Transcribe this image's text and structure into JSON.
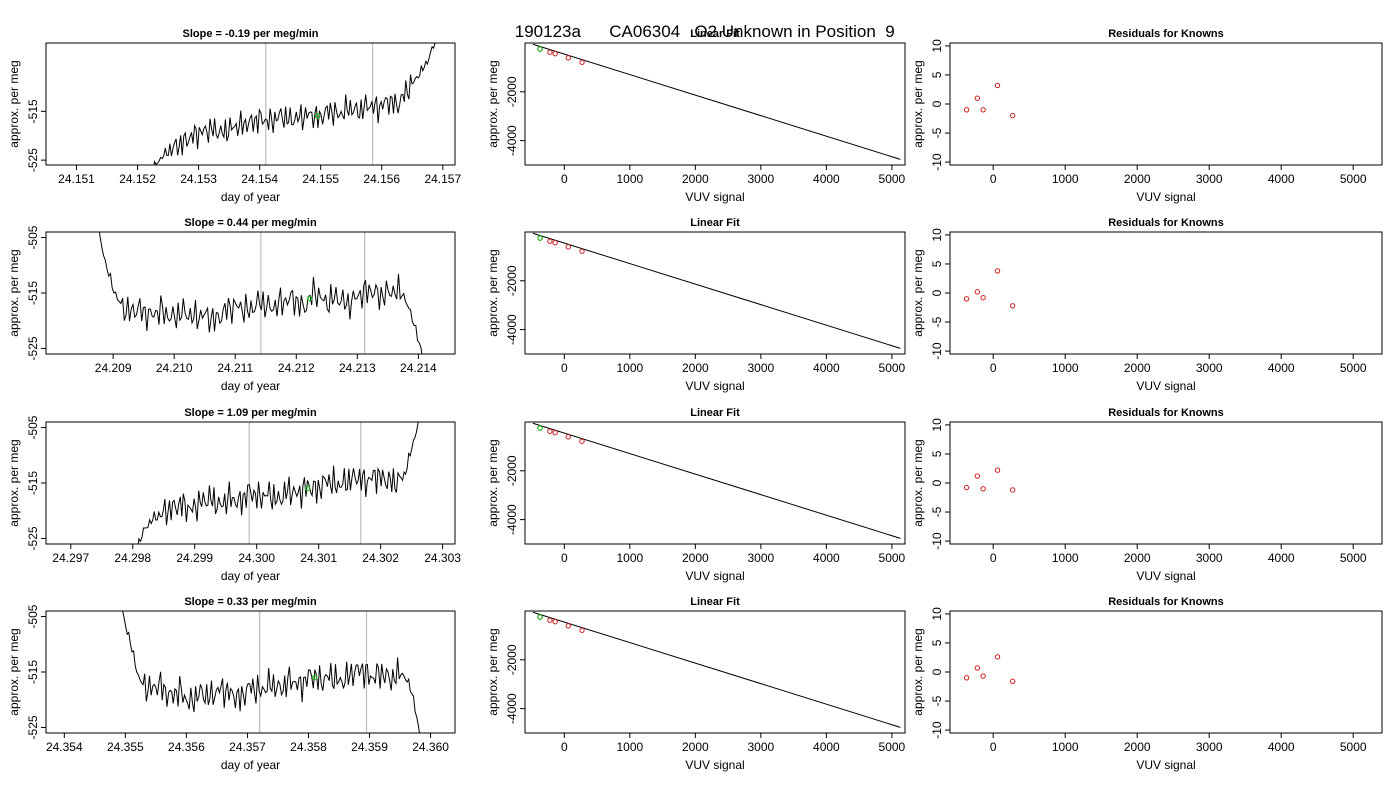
{
  "title_parts": [
    "190123a",
    "CA06304",
    "O2 Unknown in Position",
    "9"
  ],
  "colors": {
    "trace": "#000000",
    "vline": "#bdbdbd",
    "known_point": "#cc2222",
    "unknown_point": "#22bb22"
  },
  "chart_data": [
    {
      "panel": "row1-timeseries",
      "type": "line",
      "title": "Slope =  -0.19  per meg/min",
      "xlabel": "day of year",
      "ylabel": "approx. per meg",
      "xlim": [
        24.1505,
        24.1572
      ],
      "ylim": [
        -526,
        -501
      ],
      "xticks": [
        "24.151",
        "24.152",
        "24.153",
        "24.154",
        "24.155",
        "24.156",
        "24.157"
      ],
      "yticks": [
        "-515",
        "-525"
      ],
      "vlines_x": [
        24.1541,
        24.15585
      ],
      "unknown_point": {
        "x": 24.15495,
        "y": -516
      },
      "trace": {
        "x_start": 24.1521,
        "x_end": 24.1569,
        "y": [
          -529,
          -526.5,
          -524,
          -522.5,
          -521.5,
          -520,
          -519.2,
          -518.6,
          -519.5,
          -518.4,
          -517.8,
          -517.3,
          -516.5,
          -517.2,
          -515.8,
          -516.8,
          -516.2,
          -515.6,
          -516.4,
          -514.7,
          -515.8,
          -514.2,
          -515.1,
          -513.6,
          -514.4,
          -512.8,
          -513.9,
          -510.5,
          -508,
          -505,
          -500
        ]
      }
    },
    {
      "panel": "row1-fit",
      "type": "line",
      "title": "Linear Fit",
      "xlabel": "VUV signal",
      "ylabel": "approx. per meg",
      "xlim": [
        -600,
        5200
      ],
      "ylim": [
        -5000,
        0
      ],
      "xticks": [
        "0",
        "1000",
        "2000",
        "3000",
        "4000",
        "5000"
      ],
      "yticks": [
        "-2000",
        "-4000"
      ],
      "line": {
        "x": [
          -480,
          5130
        ],
        "y": [
          -50,
          -4770
        ]
      },
      "knowns": {
        "x": [
          -370,
          -220,
          -140,
          60,
          270
        ],
        "y": [
          -250,
          -380,
          -440,
          -610,
          -790
        ]
      },
      "unknown": {
        "x": -370,
        "y": -250
      }
    },
    {
      "panel": "row1-residuals",
      "type": "scatter",
      "title": "Residuals for Knowns",
      "xlabel": "VUV signal",
      "ylabel": "approx. per meg",
      "xlim": [
        -600,
        5400
      ],
      "ylim": [
        -10.5,
        10.5
      ],
      "xticks": [
        "0",
        "1000",
        "2000",
        "3000",
        "4000",
        "5000"
      ],
      "yticks": [
        "-10",
        "-5",
        "0",
        "5",
        "10"
      ],
      "x": [
        -370,
        -220,
        -140,
        60,
        270
      ],
      "y": [
        -1,
        1,
        -1,
        3.2,
        -2
      ]
    },
    {
      "panel": "row2-timeseries",
      "type": "line",
      "title": "Slope =  0.44  per meg/min",
      "xlabel": "day of year",
      "ylabel": "approx. per meg",
      "xlim": [
        24.2079,
        24.2146
      ],
      "ylim": [
        -526,
        -504
      ],
      "xticks": [
        "24.209",
        "24.210",
        "24.211",
        "24.212",
        "24.213",
        "24.214"
      ],
      "yticks": [
        "-505",
        "-515",
        "-525"
      ],
      "vlines_x": [
        24.21142,
        24.21312
      ],
      "unknown_point": {
        "x": 24.21222,
        "y": -516
      },
      "trace": {
        "x_start": 24.2087,
        "x_end": 24.2141,
        "y": [
          -500,
          -510,
          -516,
          -518.5,
          -517.8,
          -519.2,
          -518,
          -519.6,
          -518.3,
          -519.4,
          -518.9,
          -520,
          -517.9,
          -517.3,
          -518.3,
          -516.5,
          -517.8,
          -516.7,
          -515.9,
          -517.8,
          -514.6,
          -516.8,
          -515.6,
          -517.2,
          -515.4,
          -514.4,
          -515.6,
          -514.6,
          -515,
          -520,
          -528
        ]
      }
    },
    {
      "panel": "row2-fit",
      "type": "line",
      "title": "Linear Fit",
      "xlabel": "VUV signal",
      "ylabel": "approx. per meg",
      "xlim": [
        -600,
        5200
      ],
      "ylim": [
        -5000,
        0
      ],
      "xticks": [
        "0",
        "1000",
        "2000",
        "3000",
        "4000",
        "5000"
      ],
      "yticks": [
        "-2000",
        "-4000"
      ],
      "line": {
        "x": [
          -480,
          5130
        ],
        "y": [
          -50,
          -4770
        ]
      },
      "knowns": {
        "x": [
          -370,
          -220,
          -140,
          60,
          270
        ],
        "y": [
          -250,
          -380,
          -440,
          -610,
          -790
        ]
      },
      "unknown": {
        "x": -370,
        "y": -250
      }
    },
    {
      "panel": "row2-residuals",
      "type": "scatter",
      "title": "Residuals for Knowns",
      "xlabel": "VUV signal",
      "ylabel": "approx. per meg",
      "xlim": [
        -600,
        5400
      ],
      "ylim": [
        -10.5,
        10.5
      ],
      "xticks": [
        "0",
        "1000",
        "2000",
        "3000",
        "4000",
        "5000"
      ],
      "yticks": [
        "-10",
        "-5",
        "0",
        "5",
        "10"
      ],
      "x": [
        -370,
        -220,
        -140,
        60,
        270
      ],
      "y": [
        -1,
        0.2,
        -0.8,
        3.8,
        -2.2
      ]
    },
    {
      "panel": "row3-timeseries",
      "type": "line",
      "title": "Slope =  1.09  per meg/min",
      "xlabel": "day of year",
      "ylabel": "approx. per meg",
      "xlim": [
        24.2966,
        24.3032
      ],
      "ylim": [
        -526,
        -504
      ],
      "xticks": [
        "24.297",
        "24.298",
        "24.299",
        "24.300",
        "24.301",
        "24.302",
        "24.303"
      ],
      "yticks": [
        "-505",
        "-515",
        "-525"
      ],
      "vlines_x": [
        24.29988,
        24.30168
      ],
      "unknown_point": {
        "x": 24.30082,
        "y": -516
      },
      "trace": {
        "x_start": 24.298,
        "x_end": 24.3027,
        "y": [
          -529,
          -524,
          -521.5,
          -520.5,
          -519.6,
          -518.8,
          -519.9,
          -518.4,
          -517.7,
          -519.2,
          -517.5,
          -518.7,
          -516.4,
          -517.7,
          -516.9,
          -518.2,
          -516.2,
          -517.1,
          -515.5,
          -516.4,
          -514.4,
          -515.5,
          -514.8,
          -513.8,
          -514.9,
          -513.6,
          -514.4,
          -515,
          -513.5,
          -507,
          -500
        ]
      }
    },
    {
      "panel": "row3-fit",
      "type": "line",
      "title": "Linear Fit",
      "xlabel": "VUV signal",
      "ylabel": "approx. per meg",
      "xlim": [
        -600,
        5200
      ],
      "ylim": [
        -5000,
        0
      ],
      "xticks": [
        "0",
        "1000",
        "2000",
        "3000",
        "4000",
        "5000"
      ],
      "yticks": [
        "-2000",
        "-4000"
      ],
      "line": {
        "x": [
          -480,
          5130
        ],
        "y": [
          -50,
          -4770
        ]
      },
      "knowns": {
        "x": [
          -370,
          -220,
          -140,
          60,
          270
        ],
        "y": [
          -250,
          -380,
          -440,
          -610,
          -790
        ]
      },
      "unknown": {
        "x": -370,
        "y": -250
      }
    },
    {
      "panel": "row3-residuals",
      "type": "scatter",
      "title": "Residuals for Knowns",
      "xlabel": "VUV signal",
      "ylabel": "approx. per meg",
      "xlim": [
        -600,
        5400
      ],
      "ylim": [
        -10.5,
        10.5
      ],
      "xticks": [
        "0",
        "1000",
        "2000",
        "3000",
        "4000",
        "5000"
      ],
      "yticks": [
        "-10",
        "-5",
        "0",
        "5",
        "10"
      ],
      "x": [
        -370,
        -220,
        -140,
        60,
        270
      ],
      "y": [
        -0.8,
        1.2,
        -1,
        2.2,
        -1.2
      ]
    },
    {
      "panel": "row4-timeseries",
      "type": "line",
      "title": "Slope =  0.33  per meg/min",
      "xlabel": "day of year",
      "ylabel": "approx. per meg",
      "xlim": [
        24.3537,
        24.3604
      ],
      "ylim": [
        -526,
        -504
      ],
      "xticks": [
        "24.354",
        "24.355",
        "24.356",
        "24.357",
        "24.358",
        "24.359",
        "24.360"
      ],
      "yticks": [
        "-505",
        "-515",
        "-525"
      ],
      "vlines_x": [
        24.3572,
        24.35895
      ],
      "unknown_point": {
        "x": 24.3581,
        "y": -516
      },
      "trace": {
        "x_start": 24.3549,
        "x_end": 24.35985,
        "y": [
          -502,
          -509,
          -516.5,
          -518.2,
          -517.2,
          -519.5,
          -518.3,
          -520.8,
          -518.6,
          -519.6,
          -518,
          -518.8,
          -519.9,
          -517.5,
          -518.6,
          -517,
          -518.2,
          -516.3,
          -517.6,
          -515.4,
          -516.7,
          -515.6,
          -516.9,
          -515.3,
          -514.4,
          -516.1,
          -515.1,
          -516.4,
          -515,
          -518,
          -528
        ]
      }
    },
    {
      "panel": "row4-fit",
      "type": "line",
      "title": "Linear Fit",
      "xlabel": "VUV signal",
      "ylabel": "approx. per meg",
      "xlim": [
        -600,
        5200
      ],
      "ylim": [
        -5000,
        0
      ],
      "xticks": [
        "0",
        "1000",
        "2000",
        "3000",
        "4000",
        "5000"
      ],
      "yticks": [
        "-2000",
        "-4000"
      ],
      "line": {
        "x": [
          -480,
          5130
        ],
        "y": [
          -50,
          -4770
        ]
      },
      "knowns": {
        "x": [
          -370,
          -220,
          -140,
          60,
          270
        ],
        "y": [
          -250,
          -380,
          -440,
          -610,
          -790
        ]
      },
      "unknown": {
        "x": -370,
        "y": -250
      }
    },
    {
      "panel": "row4-residuals",
      "type": "scatter",
      "title": "Residuals for Knowns",
      "xlabel": "VUV signal",
      "ylabel": "approx. per meg",
      "xlim": [
        -600,
        5400
      ],
      "ylim": [
        -10.5,
        10.5
      ],
      "xticks": [
        "0",
        "1000",
        "2000",
        "3000",
        "4000",
        "5000"
      ],
      "yticks": [
        "-10",
        "-5",
        "0",
        "5",
        "10"
      ],
      "x": [
        -370,
        -220,
        -140,
        60,
        270
      ],
      "y": [
        -1,
        0.7,
        -0.7,
        2.6,
        -1.6
      ]
    }
  ]
}
